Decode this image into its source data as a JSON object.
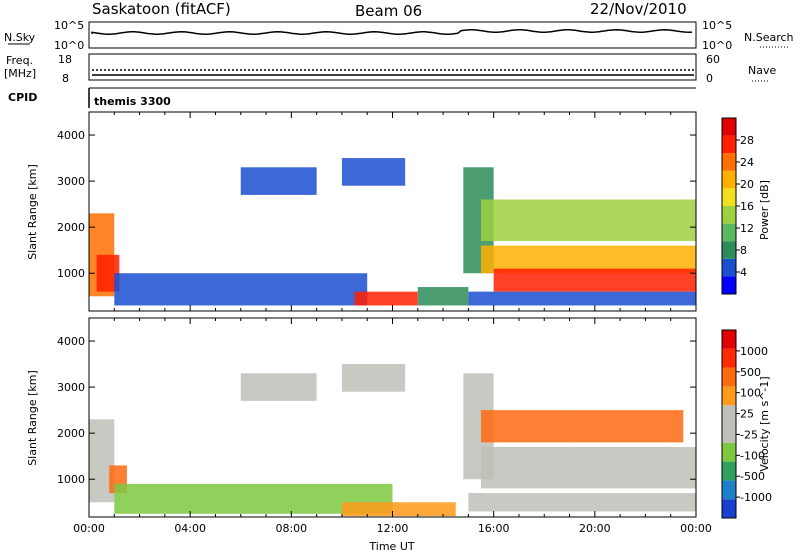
{
  "header": {
    "station": "Saskatoon (fitACF)",
    "beam": "Beam 06",
    "date": "22/Nov/2010"
  },
  "panels": {
    "nsky_label": "N.Sky",
    "nsearch_label": "N.Search",
    "nsky_ticks": [
      "10^5",
      "10^0"
    ],
    "nsearch_ticks": [
      "10^5",
      "10^0"
    ],
    "freq_label_line1": "Freq.",
    "freq_label_line2": "[MHz]",
    "freq_ticks": [
      "18",
      "8"
    ],
    "nave_label": "Nave",
    "nave_ticks": [
      "60",
      "0"
    ],
    "cpid_label": "CPID",
    "cpid_value": "themis 3300"
  },
  "colorbars": {
    "power": {
      "label": "Power [dB]",
      "ticks": [
        "28",
        "24",
        "20",
        "16",
        "12",
        "8",
        "4"
      ],
      "colors": [
        "#0000ff",
        "#1a4fd0",
        "#2e8c5a",
        "#5cb85c",
        "#9fd040",
        "#f0e020",
        "#ffb000",
        "#ff7000",
        "#ff2000",
        "#e00000"
      ]
    },
    "velocity": {
      "label": "Velocity [m s^-1]",
      "ticks": [
        "1000",
        "500",
        "100",
        "25",
        "-25",
        "-100",
        "-500",
        "-1000"
      ],
      "colors": [
        "#1a40d0",
        "#1e80c8",
        "#2ea060",
        "#7cc840",
        "#c0c0b8",
        "#c0c0b8",
        "#ff9a1a",
        "#ff6a10",
        "#ff2a00",
        "#e00000"
      ]
    }
  },
  "chart_data": [
    {
      "type": "heatmap",
      "name": "power",
      "ylabel": "Slant Range [km]",
      "ylim": [
        180,
        4500
      ],
      "xlim_hours": [
        0,
        24
      ],
      "yticks": [
        1000,
        2000,
        3000,
        4000
      ],
      "regions": [
        {
          "t0": 0.0,
          "t1": 1.0,
          "r0": 500,
          "r1": 2300,
          "level": 24
        },
        {
          "t0": 0.3,
          "t1": 1.2,
          "r0": 600,
          "r1": 1400,
          "level": 28
        },
        {
          "t0": 1.0,
          "t1": 11.0,
          "r0": 300,
          "r1": 1000,
          "level": 6
        },
        {
          "t0": 6.0,
          "t1": 9.0,
          "r0": 2700,
          "r1": 3300,
          "level": 6
        },
        {
          "t0": 10.0,
          "t1": 12.5,
          "r0": 2900,
          "r1": 3500,
          "level": 6
        },
        {
          "t0": 10.5,
          "t1": 13.0,
          "r0": 300,
          "r1": 600,
          "level": 26
        },
        {
          "t0": 13.0,
          "t1": 15.0,
          "r0": 300,
          "r1": 700,
          "level": 8
        },
        {
          "t0": 14.8,
          "t1": 16.0,
          "r0": 1000,
          "r1": 3300,
          "level": 10
        },
        {
          "t0": 15.5,
          "t1": 24.0,
          "r0": 1700,
          "r1": 2600,
          "level": 14
        },
        {
          "t0": 15.5,
          "t1": 24.0,
          "r0": 1000,
          "r1": 1600,
          "level": 20
        },
        {
          "t0": 16.0,
          "t1": 24.0,
          "r0": 600,
          "r1": 1100,
          "level": 28
        },
        {
          "t0": 15.0,
          "t1": 24.0,
          "r0": 300,
          "r1": 600,
          "level": 6
        }
      ]
    },
    {
      "type": "heatmap",
      "name": "velocity",
      "xlabel": "Time UT",
      "ylabel": "Slant Range [km]",
      "ylim": [
        180,
        4500
      ],
      "xlim_hours": [
        0,
        24
      ],
      "yticks": [
        1000,
        2000,
        3000,
        4000
      ],
      "xticks": [
        "00:00",
        "04:00",
        "08:00",
        "12:00",
        "16:00",
        "20:00",
        "00:00"
      ],
      "regions": [
        {
          "t0": 0.0,
          "t1": 1.0,
          "r0": 500,
          "r1": 2300,
          "level": 0
        },
        {
          "t0": 0.8,
          "t1": 1.5,
          "r0": 700,
          "r1": 1300,
          "level": -200
        },
        {
          "t0": 1.0,
          "t1": 12.0,
          "r0": 250,
          "r1": 900,
          "level": 60
        },
        {
          "t0": 6.0,
          "t1": 9.0,
          "r0": 2700,
          "r1": 3300,
          "level": 0
        },
        {
          "t0": 10.0,
          "t1": 12.5,
          "r0": 2900,
          "r1": 3500,
          "level": 0
        },
        {
          "t0": 10.0,
          "t1": 14.5,
          "r0": 200,
          "r1": 500,
          "level": -80
        },
        {
          "t0": 14.8,
          "t1": 16.0,
          "r0": 1000,
          "r1": 3300,
          "level": 0
        },
        {
          "t0": 15.5,
          "t1": 19.0,
          "r0": 1800,
          "r1": 2500,
          "level": -300
        },
        {
          "t0": 19.0,
          "t1": 23.5,
          "r0": 1800,
          "r1": 2500,
          "level": -200
        },
        {
          "t0": 15.5,
          "t1": 24.0,
          "r0": 800,
          "r1": 1700,
          "level": 0
        },
        {
          "t0": 15.0,
          "t1": 24.0,
          "r0": 300,
          "r1": 700,
          "level": 0
        }
      ]
    }
  ]
}
